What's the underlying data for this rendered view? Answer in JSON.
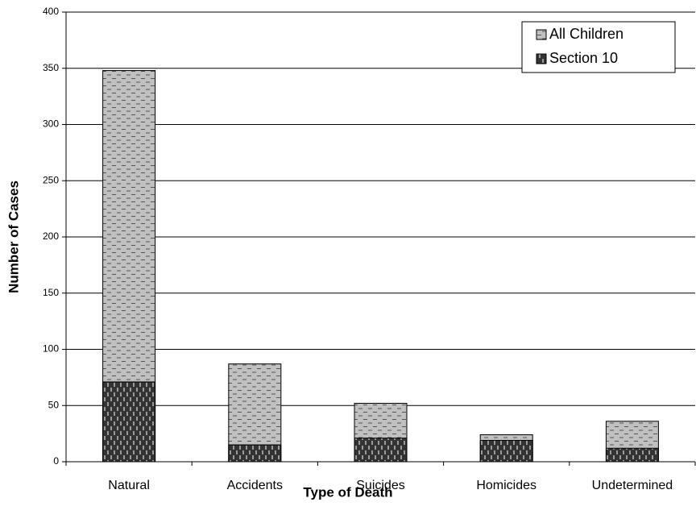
{
  "chart_data": {
    "type": "bar",
    "overlap": true,
    "x_label": "Type of Death",
    "y_label": "Number of Cases",
    "categories": [
      "Natural",
      "Accidents",
      "Suicides",
      "Homicides",
      "Undetermined"
    ],
    "series": [
      {
        "name": "All Children",
        "color": "#c0c0c0",
        "values": [
          348,
          87,
          52,
          24,
          36
        ]
      },
      {
        "name": "Section 10",
        "color": "#333333",
        "values": [
          71,
          15,
          21,
          19,
          12
        ]
      }
    ],
    "ylim": [
      0,
      400
    ],
    "yticks": [
      0,
      50,
      100,
      150,
      200,
      250,
      300,
      350,
      400
    ],
    "grid": true,
    "legend": "top-right"
  }
}
